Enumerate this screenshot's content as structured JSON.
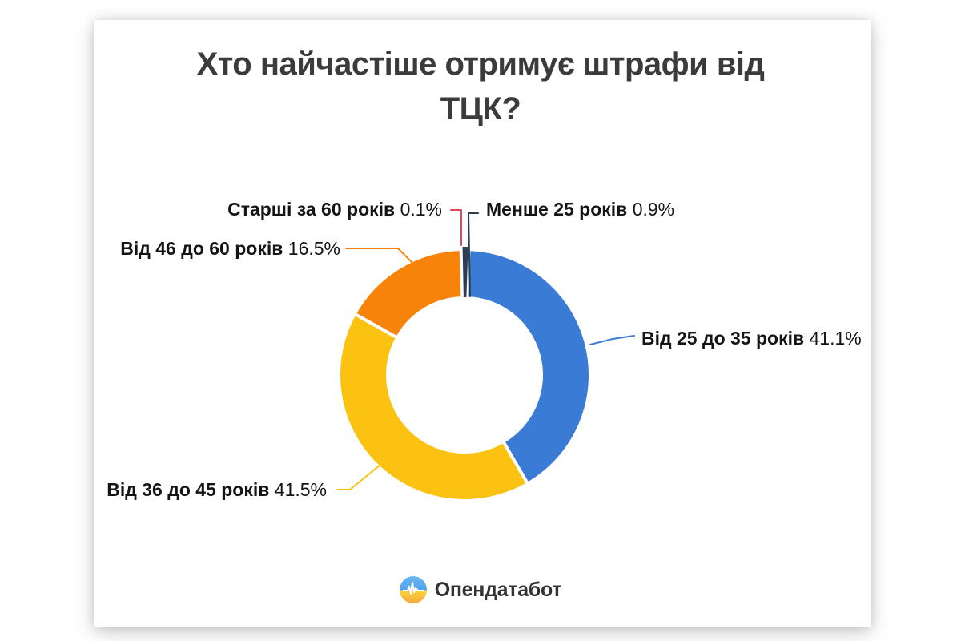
{
  "title": "Хто найчастіше отримує штрафи від\nТЦК?",
  "footer": {
    "brand": "Опендатабот"
  },
  "colors": {
    "background": "#ffffff",
    "card": "#ffffff",
    "title_text": "#3b3b3b",
    "label_text": "#141414",
    "logo_blue": "#5cb0f2",
    "logo_yellow": "#ffd43d",
    "logo_gold": "#f2a93b"
  },
  "chart_data": {
    "type": "pie",
    "subtype": "donut",
    "title": "Хто найчастіше отримує штрафи від ТЦК?",
    "unit": "%",
    "legend_position": "callout-labels",
    "grid": false,
    "series": [
      {
        "name": "Від 25 до 35 років",
        "value": 41.1,
        "pct_label": "41.1%",
        "color": "#3a7cd5"
      },
      {
        "name": "Від 36 до 45 років",
        "value": 41.5,
        "pct_label": "41.5%",
        "color": "#fcc211"
      },
      {
        "name": "Від 46 до 60 років",
        "value": 16.5,
        "pct_label": "16.5%",
        "color": "#f8830a"
      },
      {
        "name": "Старші за 60 років",
        "value": 0.1,
        "pct_label": "0.1%",
        "color": "#e0485a"
      },
      {
        "name": "Менше 25 років",
        "value": 0.9,
        "pct_label": "0.9%",
        "color": "#2b3c55"
      }
    ]
  }
}
